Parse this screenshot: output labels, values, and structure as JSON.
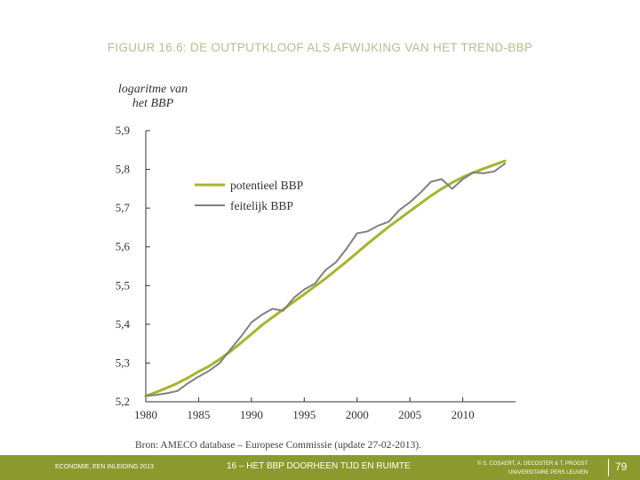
{
  "slide": {
    "figure_title": "FIGUUR 16.6: DE OUTPUTKLOOF ALS AFWIJKING VAN HET TREND-BBP",
    "source": "Bron: AMECO database – Europese Commissie (update 27-02-2013).",
    "footer": {
      "left": "ECONOMIE, EEN INLEIDING 2013",
      "center": "16 – HET BBP DOORHEEN TIJD EN RUIMTE",
      "right_line1": "© S. COSAERT, A. DECOSTER & T. PROOST",
      "right_line2": "UNIVERSITAIRE PERS LEUVEN",
      "page": "79"
    },
    "colors": {
      "potential": "#a8b42a",
      "actual": "#808080",
      "footer_bg": "#8a9a2c",
      "title": "#b7be8c"
    }
  },
  "chart_data": {
    "type": "line",
    "ylabel_line1": "logaritme van",
    "ylabel_line2": "het BBP",
    "xlabel": "",
    "xlim": [
      1980,
      2015
    ],
    "ylim": [
      5.2,
      5.9
    ],
    "x_ticks": [
      1980,
      1985,
      1990,
      1995,
      2000,
      2005,
      2010
    ],
    "y_ticks": [
      5.2,
      5.3,
      5.4,
      5.5,
      5.6,
      5.7,
      5.8,
      5.9
    ],
    "y_tick_labels": [
      "5,2",
      "5,3",
      "5,4",
      "5,5",
      "5,6",
      "5,7",
      "5,8",
      "5,9"
    ],
    "legend_position": "upper-left",
    "grid": false,
    "series": [
      {
        "name": "potentieel BBP",
        "color": "#a8b42a",
        "x": [
          1980,
          1981,
          1982,
          1983,
          1984,
          1985,
          1986,
          1987,
          1988,
          1989,
          1990,
          1991,
          1992,
          1993,
          1994,
          1995,
          1996,
          1997,
          1998,
          1999,
          2000,
          2001,
          2002,
          2003,
          2004,
          2005,
          2006,
          2007,
          2008,
          2009,
          2010,
          2011,
          2012,
          2013,
          2014
        ],
        "values": [
          5.215,
          5.225,
          5.236,
          5.248,
          5.262,
          5.278,
          5.292,
          5.31,
          5.33,
          5.352,
          5.375,
          5.398,
          5.418,
          5.438,
          5.458,
          5.478,
          5.498,
          5.518,
          5.54,
          5.562,
          5.585,
          5.608,
          5.63,
          5.652,
          5.672,
          5.692,
          5.712,
          5.732,
          5.75,
          5.766,
          5.78,
          5.792,
          5.802,
          5.812,
          5.822
        ]
      },
      {
        "name": "feitelijk BBP",
        "color": "#808080",
        "x": [
          1980,
          1981,
          1982,
          1983,
          1984,
          1985,
          1986,
          1987,
          1988,
          1989,
          1990,
          1991,
          1992,
          1993,
          1994,
          1995,
          1996,
          1997,
          1998,
          1999,
          2000,
          2001,
          2002,
          2003,
          2004,
          2005,
          2006,
          2007,
          2008,
          2009,
          2010,
          2011,
          2012,
          2013,
          2014
        ],
        "values": [
          5.215,
          5.218,
          5.222,
          5.228,
          5.248,
          5.265,
          5.28,
          5.3,
          5.335,
          5.368,
          5.405,
          5.425,
          5.44,
          5.435,
          5.468,
          5.49,
          5.505,
          5.54,
          5.56,
          5.595,
          5.635,
          5.64,
          5.655,
          5.665,
          5.695,
          5.715,
          5.74,
          5.768,
          5.775,
          5.75,
          5.775,
          5.792,
          5.79,
          5.795,
          5.815
        ]
      }
    ]
  }
}
